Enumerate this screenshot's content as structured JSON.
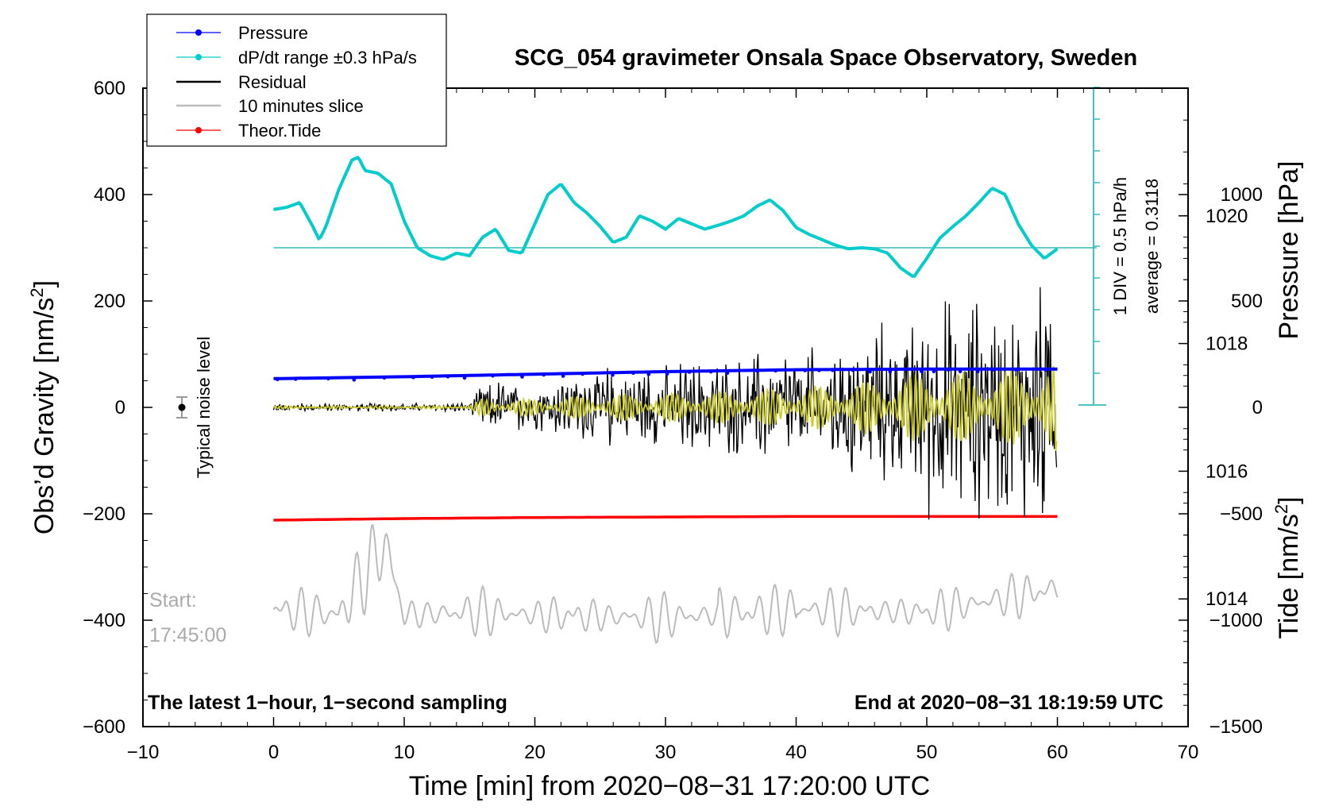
{
  "chart_data": {
    "type": "line",
    "title": "SCG_054 gravimeter Onsala Space Observatory, Sweden",
    "xlabel": "Time [min] from 2020−08−31 17:20:00 UTC",
    "ylabel_left": "Obs’d Gravity [nm/s²]",
    "ylabel_left_base": "Obs’d Gravity [nm/s",
    "ylabel_left_sup": "2",
    "ylabel_left_end": "]",
    "ylabel_pressure": "Pressure [hPa]",
    "ylabel_tide_base": "Tide [nm/s",
    "ylabel_tide_sup": "2",
    "ylabel_tide_end": "]",
    "xlim": [
      -10,
      70
    ],
    "ylim": [
      -600,
      600
    ],
    "pressure_lim": [
      1012,
      1022
    ],
    "tide_lim": [
      -1500,
      1500
    ],
    "x_ticks": [
      -10,
      0,
      10,
      20,
      30,
      40,
      50,
      60,
      70
    ],
    "x_tick_labels": [
      "−10",
      "0",
      "10",
      "20",
      "30",
      "40",
      "50",
      "60",
      "70"
    ],
    "y_ticks": [
      600,
      400,
      200,
      0,
      -200,
      -400,
      -600
    ],
    "y_tick_labels": [
      "600",
      "400",
      "200",
      "0",
      "−200",
      "−400",
      "−600"
    ],
    "pressure_ticks": [
      1020,
      1018,
      1016,
      1014
    ],
    "pressure_tick_labels": [
      "1020",
      "1018",
      "1016",
      "1014"
    ],
    "tide_ticks": [
      1000,
      500,
      0,
      -500,
      -1000,
      -1500
    ],
    "tide_tick_labels": [
      "1000",
      "500",
      "0",
      "−500",
      "−1000",
      "−1500"
    ],
    "legend": [
      {
        "label": "Pressure",
        "color": "#0000ff",
        "marker": true
      },
      {
        "label": "dP/dt range ±0.3 hPa/s",
        "color": "#00cccc",
        "marker": true
      },
      {
        "label": "Residual",
        "color": "#000000",
        "marker": false
      },
      {
        "label": "10 minutes slice",
        "color": "#bbbbbb",
        "marker": false
      },
      {
        "label": "Theor.Tide",
        "color": "#ff0000",
        "marker": true
      }
    ],
    "annotations": {
      "noise_label": "Typical noise level",
      "scale_div": "1 DIV = 0.5 hPa/h",
      "scale_avg": "average = 0.3118",
      "start_label": "Start:",
      "start_time": "17:45:00",
      "footer_left": "The latest 1−hour, 1−second sampling",
      "footer_right": "End at 2020−08−31 18:19:59 UTC"
    },
    "series": [
      {
        "name": "Pressure",
        "units": "hPa",
        "color": "#0000ff",
        "x": [
          0,
          10,
          20,
          30,
          40,
          50,
          60
        ],
        "values": [
          1017.45,
          1017.48,
          1017.52,
          1017.56,
          1017.59,
          1017.6,
          1017.6
        ]
      },
      {
        "name": "dP/dt",
        "units": "nm/s2",
        "color": "#00cccc",
        "x": [
          0,
          1,
          2,
          3,
          3.5,
          4,
          5,
          6,
          6.5,
          7,
          8,
          9,
          10,
          11,
          12,
          13,
          14,
          15,
          16,
          17,
          18,
          19,
          20,
          21,
          22,
          23,
          24,
          25,
          26,
          27,
          28,
          29,
          30,
          31,
          32,
          33,
          34,
          35,
          36,
          37,
          38,
          39,
          40,
          41,
          42,
          43,
          44,
          45,
          46,
          47,
          48,
          49,
          50,
          51,
          52,
          53,
          54,
          55,
          56,
          57,
          58,
          59,
          60
        ],
        "values": [
          372,
          376,
          385,
          340,
          315,
          340,
          410,
          465,
          470,
          445,
          440,
          420,
          350,
          300,
          285,
          278,
          290,
          285,
          320,
          335,
          295,
          290,
          345,
          400,
          420,
          385,
          365,
          340,
          310,
          320,
          360,
          350,
          335,
          355,
          345,
          335,
          342,
          350,
          360,
          378,
          390,
          370,
          338,
          325,
          315,
          305,
          298,
          300,
          298,
          290,
          262,
          245,
          280,
          318,
          340,
          360,
          385,
          412,
          400,
          345,
          305,
          280,
          298
        ]
      },
      {
        "name": "dP/dt baseline",
        "units": "nm/s2",
        "color": "#00cccc",
        "x": [
          0,
          63
        ],
        "values": [
          300,
          300
        ]
      },
      {
        "name": "Residual envelope",
        "units": "nm/s2",
        "color": "#000000",
        "x": [
          0,
          15,
          16,
          20,
          25,
          30,
          35,
          40,
          45,
          50,
          55,
          60
        ],
        "values": [
          6,
          6,
          40,
          35,
          55,
          60,
          70,
          85,
          110,
          150,
          150,
          190
        ]
      },
      {
        "name": "Theor.Tide",
        "units": "nm/s2",
        "color": "#ff0000",
        "x": [
          0,
          10,
          20,
          30,
          40,
          50,
          60
        ],
        "values": [
          -212,
          -209,
          -207,
          -206,
          -205,
          -205,
          -205
        ]
      },
      {
        "name": "10 minutes slice",
        "units": "nm/s2",
        "color": "#bbbbbb",
        "x": [
          0,
          5,
          8.5,
          10,
          15,
          20,
          30,
          40,
          50,
          60
        ],
        "values": [
          -380,
          -390,
          -255,
          -390,
          -385,
          -390,
          -395,
          -380,
          -385,
          -340
        ]
      }
    ]
  }
}
